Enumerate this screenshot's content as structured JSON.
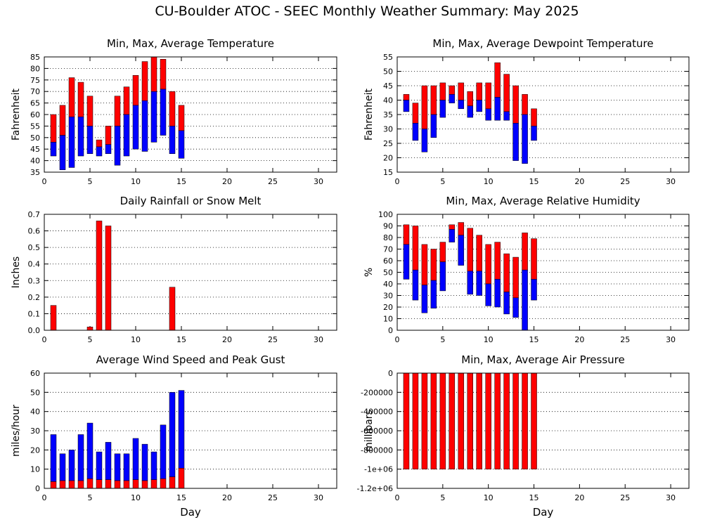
{
  "page_title": "CU-Boulder ATOC - SEEC Monthly Weather Summary: May 2025",
  "colors": {
    "max_bar": "#ff0000",
    "min_bar": "#0000ff",
    "grid": "#000000"
  },
  "chart_data": [
    {
      "id": "temperature",
      "type": "bar",
      "title": "Min, Max, Average Temperature",
      "xlabel": "",
      "ylabel": "Fahrenheit",
      "xlim": [
        0,
        32
      ],
      "ylim": [
        35,
        85
      ],
      "xticks": [
        0,
        5,
        10,
        15,
        20,
        25,
        30
      ],
      "yticks": [
        35,
        40,
        45,
        50,
        55,
        60,
        65,
        70,
        75,
        80,
        85
      ],
      "grid": "horizontal dotted",
      "style": "floating",
      "x": [
        1,
        2,
        3,
        4,
        5,
        6,
        7,
        8,
        9,
        10,
        11,
        12,
        13,
        14,
        15
      ],
      "max": [
        60,
        64,
        76,
        74,
        68,
        49,
        55,
        68,
        72,
        77,
        83,
        85,
        84,
        70,
        64
      ],
      "avg": [
        48,
        51,
        59,
        59,
        55,
        46,
        47,
        55,
        60,
        64,
        66,
        70,
        71,
        55,
        53
      ],
      "min": [
        42,
        36,
        37,
        42,
        43,
        42,
        43,
        38,
        42,
        45,
        44,
        48,
        51,
        43,
        41
      ]
    },
    {
      "id": "dewpoint",
      "type": "bar",
      "title": "Min, Max, Average Dewpoint Temperature",
      "xlabel": "",
      "ylabel": "Fahrenheit",
      "xlim": [
        0,
        32
      ],
      "ylim": [
        15,
        55
      ],
      "xticks": [
        0,
        5,
        10,
        15,
        20,
        25,
        30
      ],
      "yticks": [
        15,
        20,
        25,
        30,
        35,
        40,
        45,
        50,
        55
      ],
      "grid": "horizontal dotted",
      "style": "floating",
      "x": [
        1,
        2,
        3,
        4,
        5,
        6,
        7,
        8,
        9,
        10,
        11,
        12,
        13,
        14,
        15
      ],
      "max": [
        42,
        39,
        45,
        45,
        46,
        45,
        46,
        43,
        46,
        46,
        53,
        49,
        45,
        42,
        37
      ],
      "avg": [
        40,
        32,
        30,
        35,
        40,
        42,
        40,
        38,
        40,
        37,
        41,
        36,
        32,
        35,
        31
      ],
      "min": [
        36,
        26,
        22,
        27,
        34,
        39,
        37,
        34,
        36,
        33,
        33,
        33,
        19,
        18,
        26
      ]
    },
    {
      "id": "rainfall",
      "type": "bar",
      "title": "Daily Rainfall or Snow Melt",
      "xlabel": "",
      "ylabel": "Inches",
      "xlim": [
        0,
        32
      ],
      "ylim": [
        0,
        0.7
      ],
      "xticks": [
        0,
        5,
        10,
        15,
        20,
        25,
        30
      ],
      "yticks": [
        0,
        0.1,
        0.2,
        0.3,
        0.4,
        0.5,
        0.6,
        0.7
      ],
      "ytick_labels": [
        "0.0",
        "0.1",
        "0.2",
        "0.3",
        "0.4",
        "0.5",
        "0.6",
        "0.7"
      ],
      "grid": "horizontal dotted",
      "style": "simple",
      "x": [
        1,
        5,
        6,
        7,
        14
      ],
      "values": [
        0.15,
        0.02,
        0.66,
        0.63,
        0.26
      ]
    },
    {
      "id": "humidity",
      "type": "bar",
      "title": "Min, Max, Average Relative Humidity",
      "xlabel": "",
      "ylabel": "%",
      "xlim": [
        0,
        32
      ],
      "ylim": [
        0,
        100
      ],
      "xticks": [
        0,
        5,
        10,
        15,
        20,
        25,
        30
      ],
      "yticks": [
        0,
        10,
        20,
        30,
        40,
        50,
        60,
        70,
        80,
        90,
        100
      ],
      "grid": "horizontal dotted",
      "style": "floating",
      "x": [
        1,
        2,
        3,
        4,
        5,
        6,
        7,
        8,
        9,
        10,
        11,
        12,
        13,
        14,
        15
      ],
      "max": [
        91,
        90,
        74,
        70,
        76,
        91,
        93,
        88,
        82,
        74,
        76,
        66,
        63,
        84,
        79
      ],
      "avg": [
        74,
        52,
        39,
        43,
        59,
        87,
        82,
        51,
        51,
        40,
        44,
        33,
        28,
        52,
        44
      ],
      "min": [
        44,
        26,
        15,
        19,
        34,
        76,
        56,
        31,
        30,
        21,
        20,
        14,
        11,
        0,
        26
      ]
    },
    {
      "id": "wind",
      "type": "bar",
      "title": "Average Wind Speed and Peak Gust",
      "xlabel": "Day",
      "ylabel": "miles/hour",
      "xlim": [
        0,
        32
      ],
      "ylim": [
        0,
        60
      ],
      "xticks": [
        0,
        5,
        10,
        15,
        20,
        25,
        30
      ],
      "yticks": [
        0,
        10,
        20,
        30,
        40,
        50,
        60
      ],
      "grid": "horizontal dotted",
      "style": "stacked",
      "x": [
        1,
        2,
        3,
        4,
        5,
        6,
        7,
        8,
        9,
        10,
        11,
        12,
        13,
        14,
        15
      ],
      "gust": [
        28,
        18,
        20,
        28,
        34,
        19,
        24,
        18,
        18,
        26,
        23,
        19,
        33,
        50,
        51
      ],
      "avg": [
        3.5,
        4,
        4,
        4,
        5,
        4.5,
        4.5,
        4,
        4,
        4.5,
        4,
        4.5,
        5,
        6,
        10.5
      ]
    },
    {
      "id": "pressure",
      "type": "bar",
      "title": "Min, Max, Average Air Pressure",
      "xlabel": "Day",
      "ylabel": "millibars",
      "xlim": [
        0,
        32
      ],
      "ylim": [
        -1200000,
        0
      ],
      "xticks": [
        0,
        5,
        10,
        15,
        20,
        25,
        30
      ],
      "yticks": [
        0,
        -200000,
        -400000,
        -600000,
        -800000,
        -1000000,
        -1200000
      ],
      "ytick_labels": [
        "0",
        "-200000",
        "-400000",
        "-600000",
        "-800000",
        "-1e+06",
        "-1.2e+06"
      ],
      "grid": "horizontal dotted",
      "style": "floating",
      "x": [
        1,
        2,
        3,
        4,
        5,
        6,
        7,
        8,
        9,
        10,
        11,
        12,
        13,
        14,
        15
      ],
      "max": [
        0,
        0,
        0,
        0,
        0,
        0,
        0,
        0,
        0,
        0,
        0,
        0,
        0,
        0,
        0
      ],
      "avg": [
        -999999,
        -999999,
        -999999,
        -999999,
        -999999,
        -999999,
        -999999,
        -999999,
        -999999,
        -999999,
        -999999,
        -999999,
        -999999,
        -999999,
        -999999
      ],
      "min": [
        -999999,
        -999999,
        -999999,
        -999999,
        -999999,
        -999999,
        -999999,
        -999999,
        -999999,
        -999999,
        -999999,
        -999999,
        -999999,
        -999999,
        -999999
      ]
    }
  ]
}
